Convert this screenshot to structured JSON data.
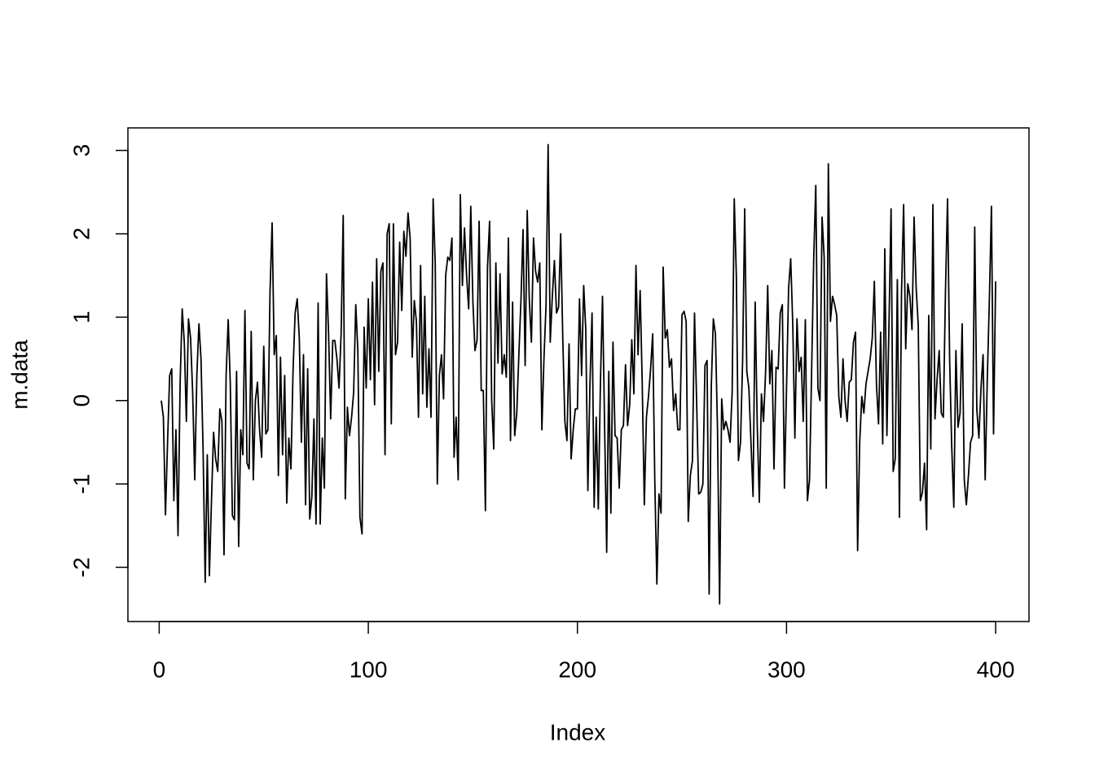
{
  "chart_data": {
    "type": "line",
    "xlabel": "Index",
    "ylabel": "m.data",
    "color": "#000000",
    "xlim": [
      -14.96,
      415.96
    ],
    "ylim": [
      -2.65,
      3.27
    ],
    "xticks": [
      0,
      100,
      200,
      300,
      400
    ],
    "yticks": [
      -2,
      -1,
      0,
      1,
      2,
      3
    ],
    "x": [
      1,
      2,
      3,
      4,
      5,
      6,
      7,
      8,
      9,
      10,
      11,
      12,
      13,
      14,
      15,
      16,
      17,
      18,
      19,
      20,
      21,
      22,
      23,
      24,
      25,
      26,
      27,
      28,
      29,
      30,
      31,
      32,
      33,
      34,
      35,
      36,
      37,
      38,
      39,
      40,
      41,
      42,
      43,
      44,
      45,
      46,
      47,
      48,
      49,
      50,
      51,
      52,
      53,
      54,
      55,
      56,
      57,
      58,
      59,
      60,
      61,
      62,
      63,
      64,
      65,
      66,
      67,
      68,
      69,
      70,
      71,
      72,
      73,
      74,
      75,
      76,
      77,
      78,
      79,
      80,
      81,
      82,
      83,
      84,
      85,
      86,
      87,
      88,
      89,
      90,
      91,
      92,
      93,
      94,
      95,
      96,
      97,
      98,
      99,
      100,
      101,
      102,
      103,
      104,
      105,
      106,
      107,
      108,
      109,
      110,
      111,
      112,
      113,
      114,
      115,
      116,
      117,
      118,
      119,
      120,
      121,
      122,
      123,
      124,
      125,
      126,
      127,
      128,
      129,
      130,
      131,
      132,
      133,
      134,
      135,
      136,
      137,
      138,
      139,
      140,
      141,
      142,
      143,
      144,
      145,
      146,
      147,
      148,
      149,
      150,
      151,
      152,
      153,
      154,
      155,
      156,
      157,
      158,
      159,
      160,
      161,
      162,
      163,
      164,
      165,
      166,
      167,
      168,
      169,
      170,
      171,
      172,
      173,
      174,
      175,
      176,
      177,
      178,
      179,
      180,
      181,
      182,
      183,
      184,
      185,
      186,
      187,
      188,
      189,
      190,
      191,
      192,
      193,
      194,
      195,
      196,
      197,
      198,
      199,
      200,
      201,
      202,
      203,
      204,
      205,
      206,
      207,
      208,
      209,
      210,
      211,
      212,
      213,
      214,
      215,
      216,
      217,
      218,
      219,
      220,
      221,
      222,
      223,
      224,
      225,
      226,
      227,
      228,
      229,
      230,
      231,
      232,
      233,
      234,
      235,
      236,
      237,
      238,
      239,
      240,
      241,
      242,
      243,
      244,
      245,
      246,
      247,
      248,
      249,
      250,
      251,
      252,
      253,
      254,
      255,
      256,
      257,
      258,
      259,
      260,
      261,
      262,
      263,
      264,
      265,
      266,
      267,
      268,
      269,
      270,
      271,
      272,
      273,
      274,
      275,
      276,
      277,
      278,
      279,
      280,
      281,
      282,
      283,
      284,
      285,
      286,
      287,
      288,
      289,
      290,
      291,
      292,
      293,
      294,
      295,
      296,
      297,
      298,
      299,
      300,
      301,
      302,
      303,
      304,
      305,
      306,
      307,
      308,
      309,
      310,
      311,
      312,
      313,
      314,
      315,
      316,
      317,
      318,
      319,
      320,
      321,
      322,
      323,
      324,
      325,
      326,
      327,
      328,
      329,
      330,
      331,
      332,
      333,
      334,
      335,
      336,
      337,
      338,
      339,
      340,
      341,
      342,
      343,
      344,
      345,
      346,
      347,
      348,
      349,
      350,
      351,
      352,
      353,
      354,
      355,
      356,
      357,
      358,
      359,
      360,
      361,
      362,
      363,
      364,
      365,
      366,
      367,
      368,
      369,
      370,
      371,
      372,
      373,
      374,
      375,
      376,
      377,
      378,
      379,
      380,
      381,
      382,
      383,
      384,
      385,
      386,
      387,
      388,
      389,
      390,
      391,
      392,
      393,
      394,
      395,
      396,
      397,
      398,
      399,
      400
    ],
    "values": [
      0.0,
      -0.2,
      -1.37,
      -0.5,
      0.3,
      0.38,
      -1.2,
      -0.35,
      -1.62,
      0.2,
      1.1,
      0.7,
      -0.25,
      0.98,
      0.75,
      0.1,
      -0.95,
      0.3,
      0.92,
      0.5,
      -0.6,
      -2.18,
      -0.65,
      -2.1,
      -1.2,
      -0.38,
      -0.7,
      -0.85,
      -0.1,
      -0.25,
      -1.85,
      0.3,
      0.97,
      0.2,
      -1.38,
      -1.43,
      0.35,
      -1.75,
      -0.35,
      -0.65,
      1.08,
      -0.75,
      -0.82,
      0.83,
      -0.95,
      0.0,
      0.22,
      -0.35,
      -0.68,
      0.65,
      -0.4,
      -0.35,
      1.3,
      2.13,
      0.55,
      0.78,
      -0.9,
      0.52,
      -0.65,
      0.3,
      -1.23,
      -0.45,
      -0.82,
      0.35,
      1.05,
      1.22,
      0.75,
      -0.5,
      0.55,
      -1.25,
      0.38,
      -1.42,
      -1.15,
      -0.22,
      -1.48,
      1.17,
      -1.48,
      -0.45,
      -1.05,
      1.52,
      0.8,
      -0.22,
      0.72,
      0.72,
      0.5,
      0.15,
      0.8,
      2.22,
      -1.18,
      -0.08,
      -0.42,
      -0.2,
      0.1,
      1.15,
      0.6,
      -1.4,
      -1.6,
      0.88,
      0.15,
      1.22,
      0.25,
      1.42,
      -0.05,
      1.7,
      0.35,
      1.55,
      1.65,
      -0.65,
      2.0,
      2.12,
      -0.28,
      2.12,
      0.55,
      0.7,
      1.9,
      1.08,
      2.03,
      1.73,
      2.25,
      1.95,
      0.52,
      1.2,
      0.95,
      -0.2,
      1.62,
      0.08,
      1.25,
      -0.08,
      0.62,
      -0.2,
      2.42,
      1.65,
      -1.0,
      0.3,
      0.55,
      0.02,
      1.5,
      1.72,
      1.68,
      1.95,
      -0.68,
      -0.2,
      -0.95,
      2.47,
      1.38,
      2.07,
      1.5,
      1.1,
      2.33,
      1.2,
      0.6,
      0.72,
      2.15,
      0.12,
      0.12,
      -1.32,
      1.6,
      2.15,
      0.0,
      -0.58,
      1.65,
      0.45,
      1.52,
      0.32,
      0.55,
      0.28,
      1.95,
      -0.48,
      1.18,
      -0.42,
      -0.15,
      0.55,
      1.2,
      2.05,
      0.42,
      2.28,
      1.2,
      0.7,
      1.95,
      1.55,
      1.42,
      1.65,
      -0.35,
      0.5,
      1.15,
      3.07,
      0.7,
      1.25,
      1.68,
      1.05,
      1.12,
      2.0,
      0.75,
      -0.25,
      -0.48,
      0.68,
      -0.7,
      -0.35,
      -0.1,
      -0.1,
      1.22,
      0.3,
      1.38,
      0.85,
      -1.08,
      0.2,
      1.05,
      -1.28,
      -0.2,
      -1.3,
      0.2,
      1.25,
      -0.3,
      -1.82,
      0.35,
      -1.35,
      0.7,
      -0.42,
      -0.45,
      -1.05,
      -0.35,
      -0.3,
      0.43,
      -0.3,
      -0.05,
      0.73,
      0.08,
      1.62,
      0.55,
      1.32,
      0.2,
      -1.25,
      -0.2,
      0.05,
      0.38,
      0.8,
      -0.95,
      -2.2,
      -1.12,
      -1.35,
      1.6,
      0.75,
      0.85,
      0.4,
      0.5,
      -0.12,
      0.08,
      -0.35,
      -0.35,
      1.03,
      1.07,
      0.95,
      -1.45,
      -0.9,
      -0.72,
      1.05,
      0.0,
      -1.12,
      -1.1,
      -1.0,
      0.42,
      0.48,
      -2.32,
      0.15,
      0.98,
      0.8,
      -0.35,
      -2.44,
      0.02,
      -0.35,
      -0.25,
      -0.35,
      -0.5,
      0.1,
      2.42,
      1.5,
      -0.72,
      -0.5,
      0.48,
      2.3,
      0.35,
      0.15,
      -0.5,
      -1.15,
      1.18,
      -0.3,
      -1.22,
      0.08,
      -0.25,
      0.35,
      1.38,
      0.2,
      0.6,
      -0.82,
      0.4,
      0.38,
      1.05,
      1.15,
      -1.05,
      0.15,
      1.35,
      1.7,
      0.9,
      -0.45,
      0.98,
      0.35,
      0.52,
      -0.25,
      0.97,
      -1.2,
      -0.95,
      0.35,
      1.7,
      2.58,
      0.15,
      0.0,
      2.2,
      1.72,
      -1.05,
      2.84,
      0.95,
      1.25,
      1.15,
      1.02,
      0.05,
      -0.2,
      0.5,
      0.0,
      -0.25,
      0.22,
      0.25,
      0.7,
      0.82,
      -1.8,
      -0.5,
      0.05,
      -0.15,
      0.2,
      0.35,
      0.5,
      0.75,
      1.43,
      0.2,
      -0.28,
      0.82,
      -0.52,
      1.82,
      -0.42,
      0.92,
      2.3,
      -0.85,
      -0.7,
      1.45,
      -1.4,
      1.3,
      2.35,
      0.62,
      1.4,
      1.25,
      0.85,
      2.2,
      1.35,
      0.9,
      -1.2,
      -1.1,
      -0.75,
      -1.55,
      1.02,
      -0.58,
      2.35,
      -0.22,
      0.25,
      0.6,
      -0.15,
      -0.2,
      1.3,
      2.42,
      0.5,
      -0.55,
      -1.28,
      0.6,
      -0.32,
      -0.15,
      0.92,
      -0.95,
      -1.25,
      -0.9,
      -0.5,
      -0.42,
      2.08,
      -0.1,
      -0.45,
      0.15,
      0.55,
      -0.95,
      0.25,
      1.2,
      2.33,
      -0.4,
      1.43
    ]
  }
}
